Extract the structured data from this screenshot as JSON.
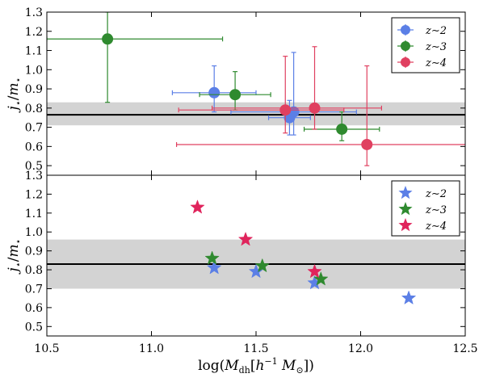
{
  "chart_data": [
    {
      "type": "scatter",
      "panel": "top",
      "marker": "circle",
      "ylabel": "j⋆/m⋆",
      "xlim": [
        10.5,
        12.5
      ],
      "ylim": [
        0.45,
        1.3
      ],
      "yticks": [
        0.5,
        0.6,
        0.7,
        0.8,
        0.9,
        1.0,
        1.1,
        1.2,
        1.3
      ],
      "ytick_labels": [
        "0.5",
        "0.6",
        "0.7",
        "0.8",
        "0.9",
        "1.0",
        "1.1",
        "1.2",
        "1.3"
      ],
      "hline": 0.765,
      "band": [
        0.71,
        0.83
      ],
      "grid": false,
      "legend_position": "top-right",
      "series": [
        {
          "name": "z∼2",
          "color": "#5b7fe6",
          "points": [
            {
              "x": 11.3,
              "y": 0.88,
              "xerr": [
                0.2,
                0.2
              ],
              "yerr": [
                0.1,
                0.14
              ]
            },
            {
              "x": 11.66,
              "y": 0.75,
              "xerr": [
                0.1,
                0.1
              ],
              "yerr": [
                0.09,
                0.09
              ]
            },
            {
              "x": 11.68,
              "y": 0.78,
              "xerr": [
                0.3,
                0.3
              ],
              "yerr": [
                0.12,
                0.31
              ]
            }
          ]
        },
        {
          "name": "z∼3",
          "color": "#2f8a2f",
          "points": [
            {
              "x": 10.79,
              "y": 1.16,
              "xerr": [
                0.29,
                0.55
              ],
              "yerr": [
                0.33,
                0.14
              ]
            },
            {
              "x": 11.4,
              "y": 0.87,
              "xerr": [
                0.17,
                0.17
              ],
              "yerr": [
                0.08,
                0.12
              ]
            },
            {
              "x": 11.91,
              "y": 0.69,
              "xerr": [
                0.18,
                0.18
              ],
              "yerr": [
                0.06,
                0.09
              ]
            }
          ]
        },
        {
          "name": "z∼4",
          "color": "#e04060",
          "points": [
            {
              "x": 11.64,
              "y": 0.79,
              "xerr": [
                0.51,
                0.28
              ],
              "yerr": [
                0.12,
                0.28
              ]
            },
            {
              "x": 11.78,
              "y": 0.8,
              "xerr": [
                0.49,
                0.32
              ],
              "yerr": [
                0.11,
                0.32
              ]
            },
            {
              "x": 12.03,
              "y": 0.61,
              "xerr": [
                0.91,
                0.58
              ],
              "yerr": [
                0.11,
                0.41
              ]
            }
          ]
        }
      ]
    },
    {
      "type": "scatter",
      "panel": "bottom",
      "marker": "star",
      "xlabel": "log(Mdh[h⁻¹ M⊙])",
      "ylabel": "j⋆/m⋆",
      "xlim": [
        10.5,
        12.5
      ],
      "ylim": [
        0.45,
        1.3
      ],
      "xticks": [
        10.5,
        11.0,
        11.5,
        12.0,
        12.5
      ],
      "xtick_labels": [
        "10.5",
        "11.0",
        "11.5",
        "12.0",
        "12.5"
      ],
      "yticks": [
        0.5,
        0.6,
        0.7,
        0.8,
        0.9,
        1.0,
        1.1,
        1.2,
        1.3
      ],
      "ytick_labels": [
        "0.5",
        "0.6",
        "0.7",
        "0.8",
        "0.9",
        "1.0",
        "1.1",
        "1.2",
        "1.3"
      ],
      "hline": 0.83,
      "band": [
        0.7,
        0.96
      ],
      "grid": false,
      "legend_position": "top-right",
      "series": [
        {
          "name": "z∼2",
          "color": "#5b7fe6",
          "points": [
            {
              "x": 11.3,
              "y": 0.81
            },
            {
              "x": 11.5,
              "y": 0.79
            },
            {
              "x": 11.78,
              "y": 0.73
            },
            {
              "x": 12.23,
              "y": 0.65
            }
          ]
        },
        {
          "name": "z∼3",
          "color": "#2f8a2f",
          "points": [
            {
              "x": 11.29,
              "y": 0.86
            },
            {
              "x": 11.53,
              "y": 0.82
            },
            {
              "x": 11.81,
              "y": 0.75
            }
          ]
        },
        {
          "name": "z∼4",
          "color": "#e0245c",
          "points": [
            {
              "x": 11.22,
              "y": 1.13
            },
            {
              "x": 11.45,
              "y": 0.96
            },
            {
              "x": 11.78,
              "y": 0.79
            }
          ]
        }
      ]
    }
  ]
}
